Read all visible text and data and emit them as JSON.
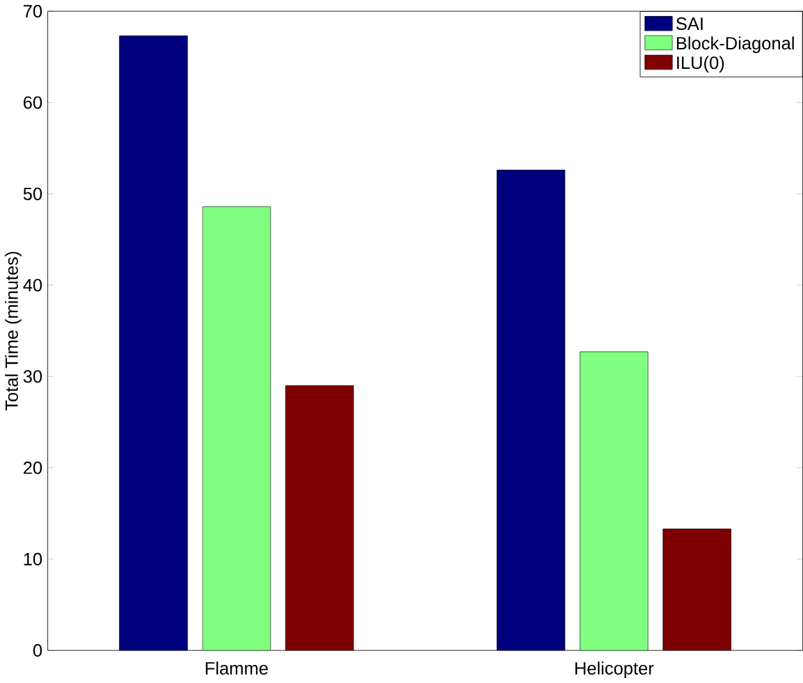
{
  "chart_data": {
    "type": "bar",
    "ylabel": "Total Time (minutes)",
    "categories": [
      "Flamme",
      "Helicopter"
    ],
    "series": [
      {
        "name": "SAI",
        "color": "#00007f",
        "values": [
          67.3,
          52.6
        ]
      },
      {
        "name": "Block-Diagonal",
        "color": "#80ff80",
        "values": [
          48.6,
          32.7
        ]
      },
      {
        "name": "ILU(0)",
        "color": "#7f0000",
        "values": [
          29.0,
          13.3
        ]
      }
    ],
    "ylim": [
      0,
      70
    ],
    "yticks": [
      0,
      10,
      20,
      30,
      40,
      50,
      60,
      70
    ],
    "legend": "top right"
  }
}
